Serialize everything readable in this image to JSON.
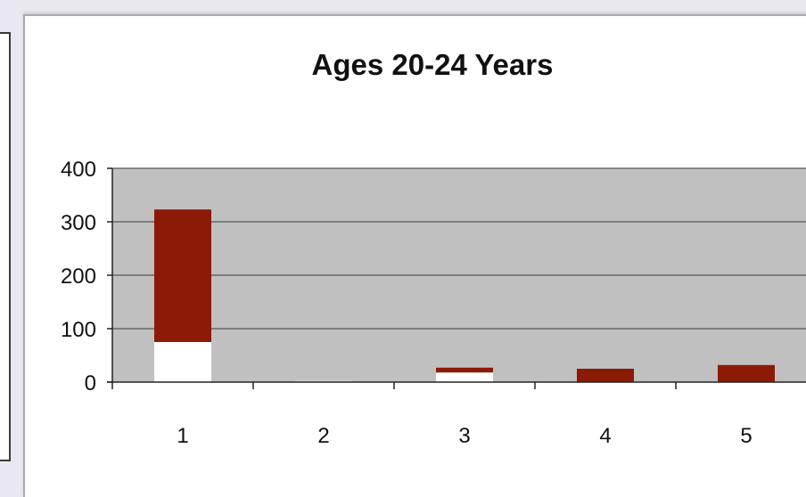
{
  "chart_data": {
    "type": "bar",
    "stacked": true,
    "title": "Ages 20-24 Years",
    "categories": [
      "1",
      "2",
      "3",
      "4",
      "5"
    ],
    "series": [
      {
        "color": "#ffffff",
        "values": [
          75,
          2,
          18,
          0,
          0
        ]
      },
      {
        "color": "#8b1a07",
        "values": [
          248,
          0,
          9,
          25,
          32
        ]
      }
    ],
    "ylim": [
      0,
      400
    ],
    "yticks": [
      "0",
      "100",
      "200",
      "300",
      "400"
    ],
    "grid": true,
    "plot_background": "#c0c0c0"
  }
}
